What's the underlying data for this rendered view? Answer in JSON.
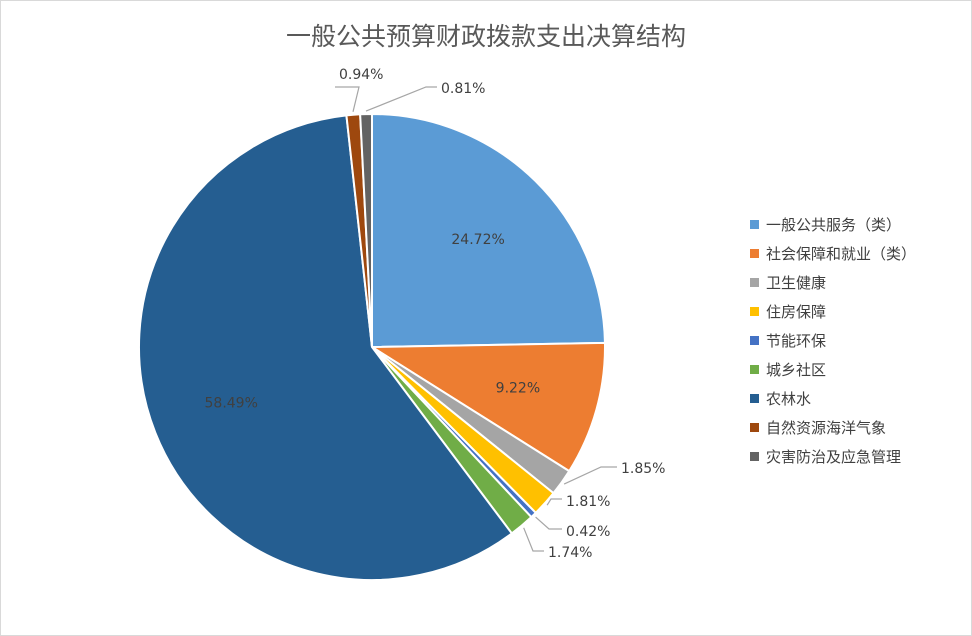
{
  "chart_data": {
    "type": "pie",
    "title": "一般公共预算财政拨款支出决算结构",
    "start_angle_deg": 0,
    "direction": "clockwise",
    "legend_position": "right",
    "slices": [
      {
        "name": "一般公共服务（类）",
        "value": 24.72,
        "label": "24.72%",
        "color": "#5B9BD5",
        "label_style": "inside"
      },
      {
        "name": "社会保障和就业（类）",
        "value": 9.22,
        "label": "9.22%",
        "color": "#ED7D31",
        "label_style": "inside"
      },
      {
        "name": "卫生健康",
        "value": 1.85,
        "label": "1.85%",
        "color": "#A5A5A5",
        "label_style": "outside"
      },
      {
        "name": "住房保障",
        "value": 1.81,
        "label": "1.81%",
        "color": "#FFC000",
        "label_style": "outside"
      },
      {
        "name": "节能环保",
        "value": 0.42,
        "label": "0.42%",
        "color": "#4472C4",
        "label_style": "outside"
      },
      {
        "name": "城乡社区",
        "value": 1.74,
        "label": "1.74%",
        "color": "#70AD47",
        "label_style": "outside"
      },
      {
        "name": "农林水",
        "value": 58.49,
        "label": "58.49%",
        "color": "#255E91",
        "label_style": "inside"
      },
      {
        "name": "自然资源海洋气象",
        "value": 0.94,
        "label": "0.94%",
        "color": "#9E480E",
        "label_style": "outside"
      },
      {
        "name": "灾害防治及应急管理",
        "value": 0.81,
        "label": "0.81%",
        "color": "#636363",
        "label_style": "outside"
      }
    ]
  }
}
